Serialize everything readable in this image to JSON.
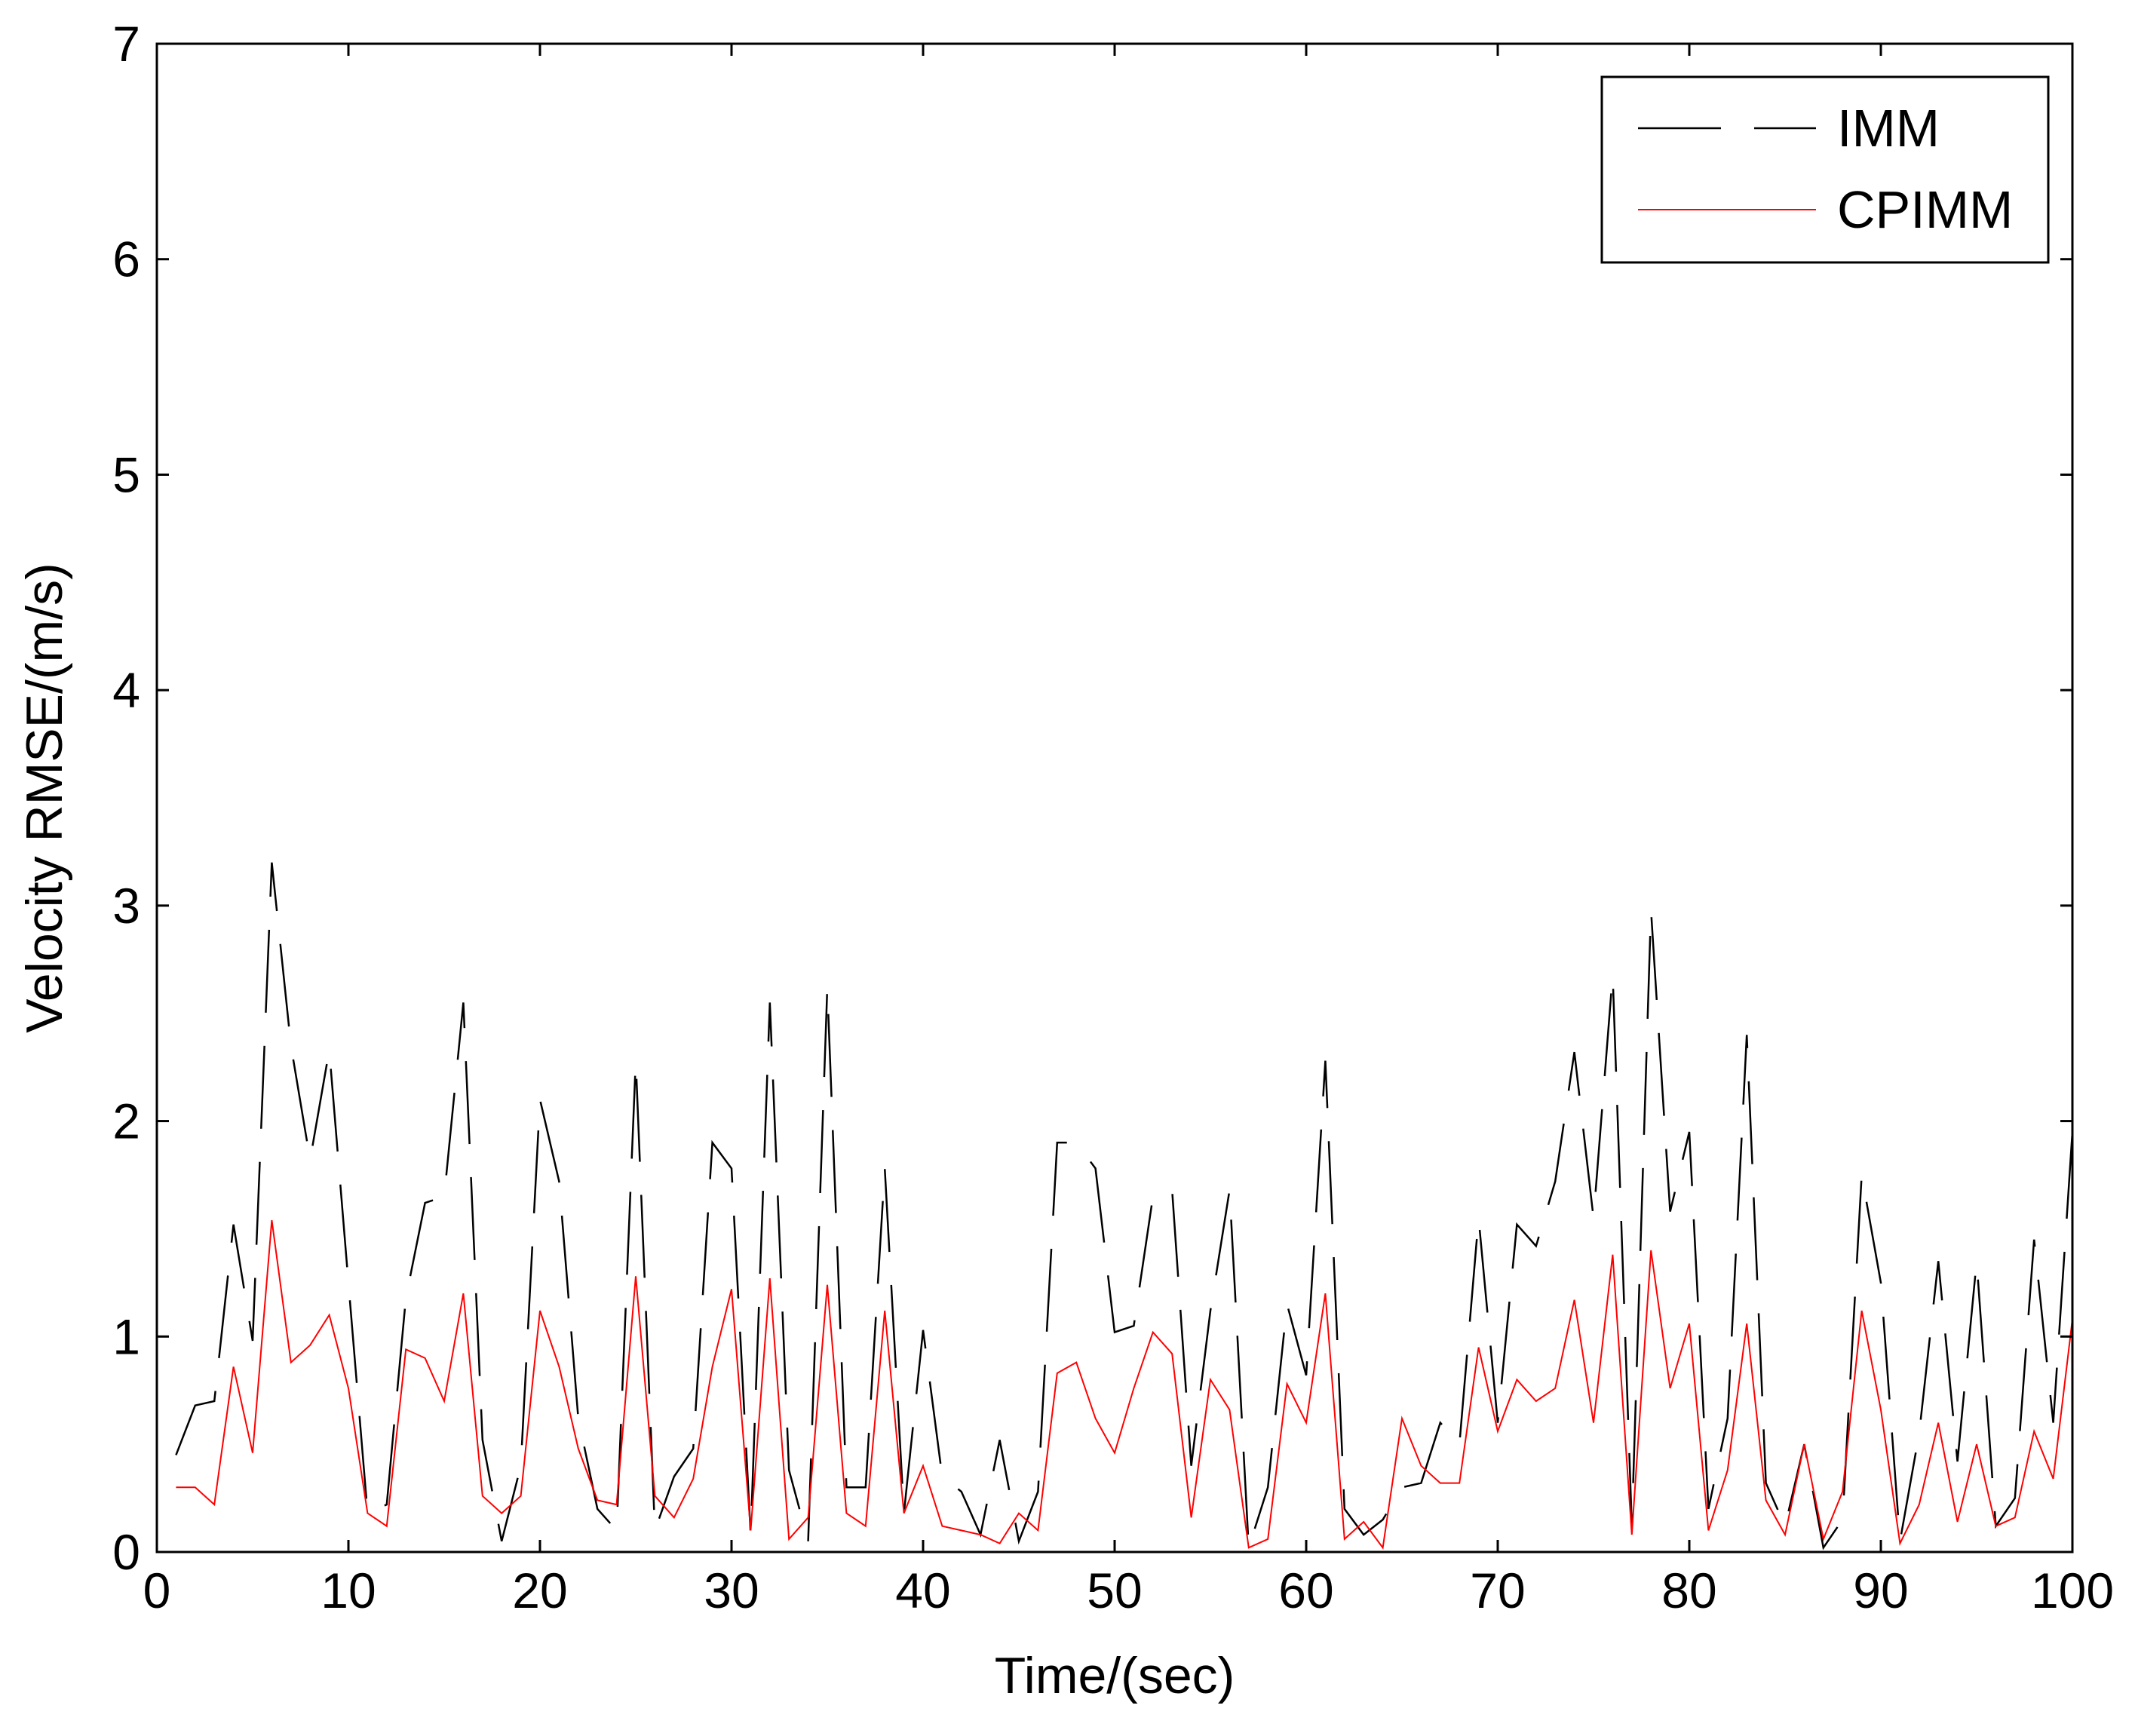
{
  "chart_data": {
    "type": "line",
    "xlabel": "Time/(sec)",
    "ylabel": "Velocity RMSE/(m/s)",
    "xlim": [
      0,
      100
    ],
    "ylim": [
      0,
      7
    ],
    "xticks": [
      0,
      10,
      20,
      30,
      40,
      50,
      60,
      70,
      80,
      90,
      100
    ],
    "yticks": [
      0,
      1,
      2,
      3,
      4,
      5,
      6,
      7
    ],
    "grid": false,
    "legend_position": "top-right",
    "x": [
      1,
      2,
      3,
      4,
      5,
      6,
      7,
      8,
      9,
      10,
      11,
      12,
      13,
      14,
      15,
      16,
      17,
      18,
      19,
      20,
      21,
      22,
      23,
      24,
      25,
      26,
      27,
      28,
      29,
      30,
      31,
      32,
      33,
      34,
      35,
      36,
      37,
      38,
      39,
      40,
      41,
      42,
      43,
      44,
      45,
      46,
      47,
      48,
      49,
      50,
      51,
      52,
      53,
      54,
      55,
      56,
      57,
      58,
      59,
      60,
      61,
      62,
      63,
      64,
      65,
      66,
      67,
      68,
      69,
      70,
      71,
      72,
      73,
      74,
      75,
      76,
      77,
      78,
      79,
      80,
      81,
      82,
      83,
      84,
      85,
      86,
      87,
      88,
      89,
      90,
      91,
      92,
      93,
      94,
      95,
      96,
      97,
      98,
      99,
      100
    ],
    "series": [
      {
        "name": "IMM",
        "color": "#000000",
        "style": "dashed",
        "values": [
          0.45,
          0.68,
          0.7,
          1.52,
          0.98,
          3.2,
          2.35,
          1.82,
          2.33,
          1.25,
          0.18,
          0.22,
          1.18,
          1.62,
          1.65,
          2.55,
          0.52,
          0.05,
          0.4,
          2.1,
          1.72,
          0.62,
          0.2,
          0.1,
          2.28,
          0.1,
          0.35,
          0.48,
          1.9,
          1.78,
          0.08,
          2.55,
          0.38,
          0.05,
          2.62,
          0.3,
          0.3,
          1.78,
          0.18,
          1.03,
          0.35,
          0.28,
          0.08,
          0.52,
          0.05,
          0.28,
          1.9,
          1.9,
          1.78,
          1.02,
          1.05,
          1.65,
          1.68,
          0.4,
          1.12,
          1.68,
          0.02,
          0.3,
          1.15,
          0.82,
          2.28,
          0.2,
          0.08,
          0.15,
          0.3,
          0.32,
          0.6,
          0.5,
          1.55,
          0.6,
          1.52,
          1.42,
          1.72,
          2.32,
          1.55,
          2.68,
          0.12,
          2.98,
          1.58,
          1.95,
          0.2,
          0.62,
          2.4,
          0.32,
          0.12,
          0.5,
          0.02,
          0.15,
          1.75,
          1.25,
          0.05,
          0.55,
          1.35,
          0.42,
          1.35,
          0.12,
          0.25,
          1.45,
          0.6,
          1.95
        ]
      },
      {
        "name": "CPIMM",
        "color": "#ff0000",
        "style": "solid",
        "values": [
          0.3,
          0.3,
          0.22,
          0.86,
          0.46,
          1.54,
          0.88,
          0.96,
          1.1,
          0.76,
          0.18,
          0.12,
          0.94,
          0.9,
          0.7,
          1.2,
          0.26,
          0.18,
          0.26,
          1.12,
          0.86,
          0.48,
          0.24,
          0.22,
          1.28,
          0.26,
          0.16,
          0.34,
          0.86,
          1.22,
          0.1,
          1.27,
          0.06,
          0.16,
          1.24,
          0.18,
          0.12,
          1.12,
          0.18,
          0.4,
          0.12,
          0.1,
          0.08,
          0.04,
          0.18,
          0.1,
          0.83,
          0.88,
          0.62,
          0.46,
          0.76,
          1.02,
          0.92,
          0.16,
          0.8,
          0.66,
          0.02,
          0.06,
          0.78,
          0.6,
          1.2,
          0.06,
          0.14,
          0.02,
          0.62,
          0.4,
          0.32,
          0.32,
          0.95,
          0.56,
          0.8,
          0.7,
          0.76,
          1.17,
          0.6,
          1.38,
          0.08,
          1.4,
          0.76,
          1.06,
          0.1,
          0.38,
          1.06,
          0.24,
          0.08,
          0.5,
          0.06,
          0.28,
          1.12,
          0.66,
          0.04,
          0.22,
          0.6,
          0.14,
          0.5,
          0.12,
          0.16,
          0.56,
          0.34,
          1.08
        ]
      }
    ]
  }
}
